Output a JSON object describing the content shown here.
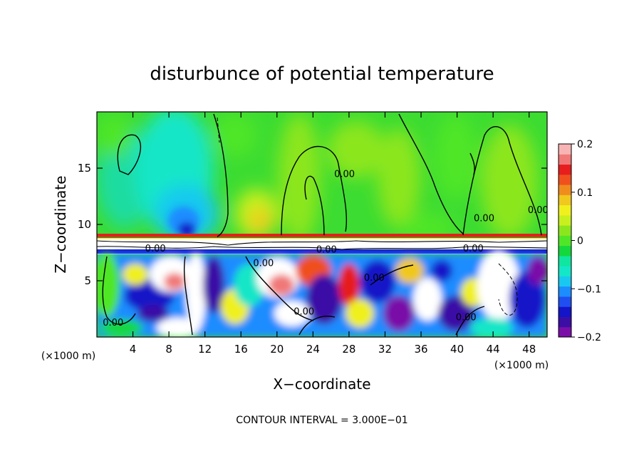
{
  "chart_data": {
    "type": "heatmap",
    "title": "disturbunce of potential temperature",
    "xlabel": "X−coordinate",
    "ylabel": "Z−coordinate",
    "x_unit_left": "(×1000 m)",
    "x_unit_right": "(×1000 m)",
    "xlim": [
      0,
      50
    ],
    "ylim": [
      0,
      20
    ],
    "x_ticks": [
      4,
      8,
      12,
      16,
      20,
      24,
      28,
      32,
      36,
      40,
      44,
      48
    ],
    "y_ticks": [
      5,
      10,
      15
    ],
    "colorbar": {
      "min": -0.2,
      "max": 0.2,
      "ticks": [
        {
          "value": 0.2,
          "label": "0.2"
        },
        {
          "value": 0.1,
          "label": "0.1"
        },
        {
          "value": 0,
          "label": "0"
        },
        {
          "value": -0.1,
          "label": "−0.1"
        },
        {
          "value": -0.2,
          "label": "−0.2"
        }
      ],
      "colors": [
        "#7a0fa8",
        "#3b0ea6",
        "#1414c8",
        "#1f4ff0",
        "#1d8cff",
        "#18c8f0",
        "#14e6c8",
        "#10e6a0",
        "#14d83c",
        "#50e628",
        "#8ce61e",
        "#c8f01e",
        "#f0f01e",
        "#f0c81e",
        "#f08c1e",
        "#f0501e",
        "#e61e1e",
        "#f07878",
        "#f8b4b4"
      ]
    },
    "contour_labels": [
      {
        "x": 1.8,
        "z": 1.0,
        "text": "0.00"
      },
      {
        "x": 6.5,
        "z": 7.6,
        "text": "0.00"
      },
      {
        "x": 25.5,
        "z": 7.5,
        "text": "0.00"
      },
      {
        "x": 18.5,
        "z": 6.3,
        "text": "0.00"
      },
      {
        "x": 30.8,
        "z": 5.0,
        "text": "0.00"
      },
      {
        "x": 23.0,
        "z": 2.0,
        "text": "0.00"
      },
      {
        "x": 27.5,
        "z": 14.2,
        "text": "0.00"
      },
      {
        "x": 43.0,
        "z": 10.3,
        "text": "0.00"
      },
      {
        "x": 41.0,
        "z": 1.5,
        "text": "0.00"
      },
      {
        "x": 41.8,
        "z": 7.6,
        "text": "0.00"
      },
      {
        "x": 49.0,
        "z": 11.0,
        "text": "0.00"
      }
    ],
    "footer": "CONTOUR INTERVAL = 3.000E−01"
  }
}
